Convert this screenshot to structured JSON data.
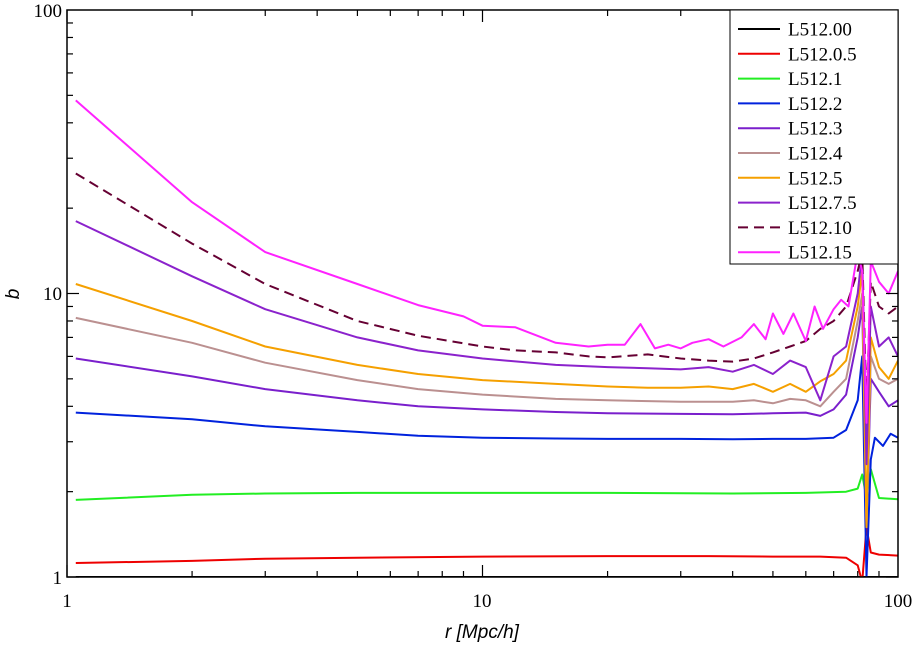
{
  "chart_data": {
    "type": "line",
    "xlabel": "r [Mpc/h]",
    "ylabel": "b",
    "xscale": "log",
    "yscale": "log",
    "xlim": [
      1,
      100
    ],
    "ylim": [
      1,
      100
    ],
    "xticks": [
      1,
      10,
      100
    ],
    "yticks": [
      1,
      10,
      100
    ],
    "xtick_labels": [
      "1",
      "10",
      "100"
    ],
    "ytick_labels": [
      "1",
      "10",
      "100"
    ],
    "grid": false,
    "legend_position": "top-right",
    "series": [
      {
        "name": "L512.00",
        "color": "#000000",
        "dash": false,
        "x": [
          1.05,
          2,
          5,
          10,
          20,
          50,
          80,
          100
        ],
        "y": [
          1.0,
          1.0,
          1.0,
          1.0,
          1.0,
          1.0,
          1.0,
          1.0
        ]
      },
      {
        "name": "L512.0.5",
        "color": "#ee0000",
        "dash": false,
        "x": [
          1.05,
          2,
          3,
          5,
          10,
          20,
          35,
          50,
          65,
          75,
          80,
          82,
          84,
          86,
          90,
          100
        ],
        "y": [
          1.12,
          1.14,
          1.16,
          1.17,
          1.18,
          1.185,
          1.185,
          1.18,
          1.18,
          1.17,
          1.1,
          0.96,
          1.5,
          1.22,
          1.2,
          1.19
        ]
      },
      {
        "name": "L512.1",
        "color": "#22ee22",
        "dash": false,
        "x": [
          1.05,
          2,
          3,
          5,
          10,
          20,
          40,
          60,
          75,
          80,
          82,
          84,
          86,
          90,
          100
        ],
        "y": [
          1.87,
          1.95,
          1.97,
          1.98,
          1.98,
          1.98,
          1.97,
          1.98,
          2.0,
          2.05,
          2.3,
          1.9,
          2.4,
          1.9,
          1.88
        ]
      },
      {
        "name": "L512.2",
        "color": "#0022dd",
        "dash": false,
        "x": [
          1.05,
          2,
          3,
          5,
          7,
          10,
          15,
          20,
          30,
          40,
          50,
          60,
          70,
          75,
          80,
          82,
          84,
          86,
          88,
          92,
          96,
          100
        ],
        "y": [
          3.8,
          3.6,
          3.4,
          3.25,
          3.15,
          3.1,
          3.08,
          3.07,
          3.07,
          3.06,
          3.07,
          3.07,
          3.1,
          3.3,
          4.2,
          6.0,
          1.0,
          2.6,
          3.1,
          2.9,
          3.2,
          3.1
        ]
      },
      {
        "name": "L512.3",
        "color": "#7a1fcc",
        "dash": false,
        "x": [
          1.05,
          2,
          3,
          5,
          7,
          10,
          15,
          20,
          30,
          40,
          50,
          60,
          65,
          70,
          75,
          80,
          82,
          84,
          86,
          90,
          95,
          100
        ],
        "y": [
          5.9,
          5.1,
          4.6,
          4.2,
          4.0,
          3.9,
          3.82,
          3.78,
          3.76,
          3.75,
          3.78,
          3.8,
          3.7,
          3.9,
          4.4,
          7.0,
          9.0,
          1.5,
          5.0,
          4.5,
          4.0,
          4.2
        ]
      },
      {
        "name": "L512.4",
        "color": "#bb9090",
        "dash": false,
        "x": [
          1.05,
          2,
          3,
          5,
          7,
          10,
          15,
          20,
          30,
          40,
          45,
          50,
          55,
          60,
          65,
          70,
          75,
          80,
          82,
          84,
          86,
          90,
          95,
          100
        ],
        "y": [
          8.2,
          6.7,
          5.7,
          4.95,
          4.6,
          4.4,
          4.25,
          4.2,
          4.15,
          4.15,
          4.2,
          4.1,
          4.25,
          4.2,
          4.0,
          4.5,
          5.0,
          8.0,
          10.0,
          1.5,
          6.0,
          5.0,
          4.8,
          5.0
        ]
      },
      {
        "name": "L512.5",
        "color": "#f5a000",
        "dash": false,
        "x": [
          1.05,
          2,
          3,
          5,
          7,
          10,
          15,
          20,
          25,
          30,
          35,
          40,
          45,
          50,
          55,
          60,
          65,
          70,
          75,
          80,
          82,
          84,
          86,
          90,
          95,
          100
        ],
        "y": [
          10.8,
          8.0,
          6.5,
          5.6,
          5.2,
          4.95,
          4.8,
          4.7,
          4.65,
          4.65,
          4.7,
          4.6,
          4.8,
          4.5,
          4.8,
          4.5,
          4.9,
          5.2,
          5.8,
          9.0,
          12.0,
          1.5,
          7.0,
          5.5,
          5.0,
          5.8
        ]
      },
      {
        "name": "L512.7.5",
        "color": "#8b22cc",
        "dash": false,
        "x": [
          1.05,
          2,
          3,
          5,
          7,
          10,
          15,
          20,
          25,
          30,
          35,
          40,
          45,
          50,
          55,
          60,
          65,
          70,
          75,
          80,
          82,
          84,
          86,
          90,
          95,
          100
        ],
        "y": [
          18.0,
          11.5,
          8.8,
          7.0,
          6.3,
          5.9,
          5.6,
          5.5,
          5.45,
          5.4,
          5.5,
          5.3,
          5.6,
          5.2,
          5.8,
          5.5,
          4.2,
          6.0,
          6.5,
          10.0,
          14.0,
          2.5,
          9.0,
          6.5,
          7.0,
          6.0
        ]
      },
      {
        "name": "L512.10",
        "color": "#660033",
        "dash": true,
        "x": [
          1.05,
          2,
          3,
          5,
          7,
          10,
          12,
          15,
          18,
          20,
          25,
          30,
          35,
          40,
          45,
          50,
          55,
          60,
          65,
          70,
          75,
          80,
          82,
          84,
          86,
          90,
          95,
          100
        ],
        "y": [
          26.5,
          15.0,
          10.8,
          8.0,
          7.1,
          6.5,
          6.3,
          6.2,
          6.0,
          5.95,
          6.1,
          5.9,
          5.8,
          5.75,
          5.9,
          6.2,
          6.5,
          6.8,
          7.5,
          8.0,
          9.0,
          12.0,
          14.0,
          4.0,
          11.0,
          9.0,
          8.5,
          9.0
        ]
      },
      {
        "name": "L512.15",
        "color": "#ff22ff",
        "dash": false,
        "x": [
          1.05,
          2,
          3,
          5,
          7,
          9,
          10,
          12,
          15,
          18,
          20,
          22,
          24,
          26,
          28,
          30,
          32,
          35,
          38,
          42,
          45,
          48,
          50,
          53,
          56,
          60,
          63,
          66,
          70,
          73,
          76,
          80,
          82,
          84,
          86,
          90,
          95,
          100
        ],
        "y": [
          48.0,
          21.0,
          14.0,
          10.8,
          9.1,
          8.3,
          7.7,
          7.6,
          6.7,
          6.5,
          6.6,
          6.6,
          7.8,
          6.4,
          6.6,
          6.4,
          6.7,
          6.9,
          6.5,
          7.0,
          7.8,
          6.9,
          8.5,
          7.2,
          8.5,
          6.8,
          9.0,
          7.5,
          8.8,
          9.5,
          9.0,
          14.0,
          12.0,
          3.5,
          13.0,
          11.0,
          10.0,
          12.0
        ]
      }
    ]
  }
}
